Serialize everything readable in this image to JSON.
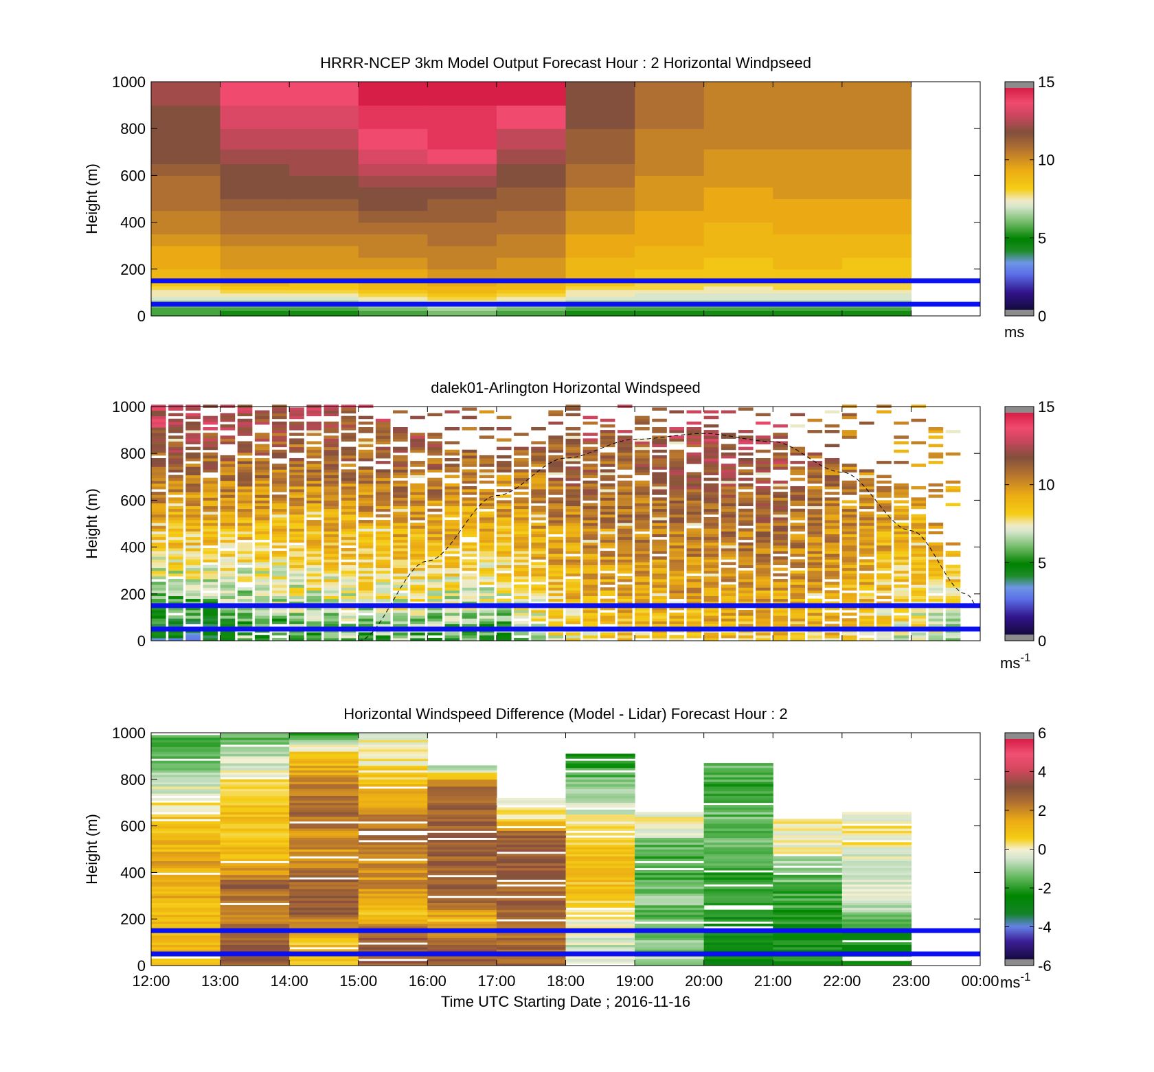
{
  "figure": {
    "xlabel": "Time UTC  Starting Date ; 2016-11-16",
    "time_ticks": [
      "12:00",
      "13:00",
      "14:00",
      "15:00",
      "16:00",
      "17:00",
      "18:00",
      "19:00",
      "20:00",
      "21:00",
      "22:00",
      "23:00",
      "00:00"
    ],
    "height_ticks": [
      "0",
      "200",
      "400",
      "600",
      "800",
      "1000"
    ],
    "ylabel": "Height (m)"
  },
  "chart_data": [
    {
      "type": "heatmap",
      "title": "HRRR-NCEP 3km Model Output   Forecast Hour : 2 Horizontal Windpseed",
      "xlabel": "",
      "ylabel": "Height (m)",
      "x_range": [
        "12:00",
        "00:00"
      ],
      "ylim": [
        0,
        1000
      ],
      "colorbar": {
        "ticks": [
          "0",
          "5",
          "10",
          "15"
        ],
        "range": [
          0,
          15
        ],
        "unit": "ms"
      },
      "reference_lines_m": [
        50,
        150
      ],
      "x_columns": [
        "12:00",
        "13:00",
        "14:00",
        "15:00",
        "16:00",
        "17:00",
        "18:00",
        "19:00",
        "20:00",
        "21:00",
        "22:00"
      ],
      "height_bins_m": [
        15,
        30,
        45,
        60,
        75,
        90,
        105,
        120,
        135,
        150,
        175,
        225,
        275,
        325,
        375,
        425,
        475,
        525,
        575,
        625,
        675,
        750,
        850,
        950
      ],
      "values": [
        [
          5.5,
          5.5,
          6,
          6.5,
          7,
          7.5,
          7.5,
          8,
          8.5,
          8.5,
          9,
          9.5,
          9.5,
          10,
          10.5,
          10.5,
          11,
          11,
          11,
          11.5,
          12,
          12,
          12,
          12.5
        ],
        [
          5,
          5.5,
          6,
          6.5,
          7,
          7.5,
          8,
          8.5,
          9,
          9,
          9.5,
          10,
          10,
          10.5,
          11,
          11,
          11.5,
          12,
          12,
          12,
          12.5,
          13,
          13.5,
          14
        ],
        [
          5,
          5.5,
          6,
          6.5,
          7,
          7.5,
          8,
          8.5,
          8.5,
          9,
          9.5,
          10,
          10,
          10.5,
          11,
          11,
          11.5,
          12,
          12,
          12.5,
          12.5,
          13,
          13.5,
          14
        ],
        [
          5.5,
          6,
          6.5,
          7,
          7.5,
          8,
          8.5,
          9,
          9,
          9.5,
          9.5,
          10,
          10.5,
          10.5,
          11,
          11.5,
          12,
          12,
          12.5,
          13,
          13.5,
          14,
          14.5,
          15
        ],
        [
          6,
          6.5,
          7,
          7.5,
          8,
          8.5,
          9,
          9,
          9.5,
          10,
          10,
          10.5,
          10.5,
          11,
          11,
          11.5,
          11.5,
          12,
          12.5,
          13,
          14,
          14.5,
          14.5,
          15
        ],
        [
          5.5,
          6,
          6.5,
          7,
          7.5,
          8,
          8.5,
          9,
          9,
          9.5,
          10,
          10,
          10.5,
          10.5,
          11,
          11,
          11.5,
          11.5,
          12,
          12,
          12.5,
          13,
          14,
          15
        ],
        [
          5,
          5.5,
          6,
          6.5,
          7,
          7.5,
          7.5,
          8,
          8.5,
          8.5,
          9,
          9,
          9.5,
          9.5,
          10,
          10,
          10.5,
          10.5,
          11,
          11,
          11.5,
          11.5,
          12,
          12
        ],
        [
          5,
          5.5,
          6,
          6.5,
          7,
          7,
          7.5,
          8,
          8,
          8.5,
          8.5,
          9,
          9,
          9.5,
          9.5,
          9.5,
          10,
          10,
          10,
          10.5,
          10.5,
          10.5,
          11,
          11
        ],
        [
          5,
          5.5,
          6,
          6.5,
          7,
          7,
          7.5,
          7.5,
          8,
          8,
          8.5,
          8.5,
          9,
          9,
          9,
          9.5,
          9.5,
          9.5,
          10,
          10,
          10,
          10.5,
          10.5,
          10.5
        ],
        [
          5,
          5.5,
          6,
          6.5,
          7,
          7,
          7.5,
          8,
          8,
          8.5,
          8.5,
          9,
          9,
          9,
          9.5,
          9.5,
          9.5,
          10,
          10,
          10,
          10,
          10.5,
          10.5,
          10.5
        ],
        [
          5,
          5.5,
          6,
          6.5,
          7,
          7,
          7.5,
          8,
          8,
          8.5,
          8.5,
          8.5,
          9,
          9,
          9.5,
          9.5,
          9.5,
          10,
          10,
          10,
          10,
          10.5,
          10.5,
          10.5
        ]
      ]
    },
    {
      "type": "heatmap",
      "title": "dalek01-Arlington  Horizontal Windspeed",
      "xlabel": "",
      "ylabel": "Height (m)",
      "x_range": [
        "12:00",
        "00:00"
      ],
      "ylim": [
        0,
        1000
      ],
      "colorbar": {
        "ticks": [
          "0",
          "5",
          "10",
          "15"
        ],
        "range": [
          0,
          15
        ],
        "unit_base": "ms",
        "unit_exponent": "-1"
      },
      "reference_lines_m": [
        50,
        150
      ],
      "overlay": "dashed arc (approximate data-coverage envelope) from 15:00, 0 m rising to about 880 m near 20:00 and descending to about 200 m at 23:30",
      "columns_per_hour": 4,
      "profile_nodes_hours_after_1200": [
        0,
        1,
        2,
        3,
        4,
        5,
        6,
        7,
        8,
        9,
        10,
        11,
        11.75
      ],
      "profile_low_ms": [
        3.5,
        4.0,
        5.0,
        5.5,
        5.5,
        5.0,
        7.5,
        8.5,
        8.5,
        8.5,
        8.5,
        7.0,
        6.0
      ],
      "profile_high_ms": [
        13.5,
        13.0,
        12.5,
        12.5,
        12.0,
        11.0,
        12.0,
        12.0,
        12.5,
        12.5,
        11.0,
        10.0,
        9.5
      ],
      "valid_top_m": [
        1000,
        1000,
        1000,
        1000,
        850,
        780,
        880,
        900,
        900,
        860,
        760,
        650,
        330
      ]
    },
    {
      "type": "heatmap",
      "title": "Horizontal Windspeed Difference (Model - Lidar) Forecast Hour : 2",
      "xlabel": "Time UTC  Starting Date ; 2016-11-16",
      "ylabel": "Height (m)",
      "x_range": [
        "12:00",
        "00:00"
      ],
      "ylim": [
        0,
        1000
      ],
      "colorbar": {
        "ticks": [
          "-6",
          "-4",
          "-2",
          "0",
          "2",
          "4",
          "6"
        ],
        "range": [
          -6,
          6
        ],
        "unit_base": "ms",
        "unit_exponent": "-1"
      },
      "reference_lines_m": [
        50,
        150
      ],
      "x_columns": [
        "12:00",
        "13:00",
        "14:00",
        "15:00",
        "16:00",
        "17:00",
        "18:00",
        "19:00",
        "20:00",
        "21:00",
        "22:00"
      ],
      "column_ranges_m": [
        [
          0,
          1000
        ],
        [
          0,
          1000
        ],
        [
          0,
          1000
        ],
        [
          0,
          1000
        ],
        [
          0,
          860
        ],
        [
          0,
          720
        ],
        [
          0,
          910
        ],
        [
          0,
          660
        ],
        [
          0,
          870
        ],
        [
          0,
          630
        ],
        [
          0,
          660
        ]
      ],
      "column_profiles_ms": [
        [
          1,
          1,
          1,
          1.5,
          1.5,
          1,
          0.5,
          -0.5,
          -1.5,
          -2
        ],
        [
          3,
          3,
          2,
          3,
          1,
          1,
          1,
          0.5,
          -0.5,
          -2
        ],
        [
          1,
          1,
          3,
          3,
          2,
          2,
          3,
          2,
          1,
          -2
        ],
        [
          3,
          3,
          1,
          2,
          2,
          3,
          2,
          1,
          0,
          0
        ],
        [
          3,
          3,
          1,
          3,
          3,
          3,
          3,
          3,
          3,
          -2
        ],
        [
          3,
          3,
          2,
          3,
          3,
          3,
          3,
          3,
          0,
          0
        ],
        [
          0,
          -0.5,
          0,
          1,
          1,
          1,
          0,
          -0.5,
          -1.5,
          -2.5
        ],
        [
          -1,
          -1,
          -1.5,
          -1.5,
          -1,
          -2,
          -2,
          -1.5,
          0,
          0
        ],
        [
          -2.5,
          -2.5,
          -2.5,
          -2,
          -2,
          -1.5,
          -1.5,
          -1.5,
          -2,
          -1.5
        ],
        [
          -2.5,
          -2.5,
          -2.5,
          -2,
          -2,
          -1.5,
          -1.5,
          0,
          0,
          0
        ],
        [
          -2.5,
          -2.5,
          -2.5,
          -1,
          -0.5,
          -0.5,
          -0.5,
          0,
          0,
          0
        ]
      ]
    }
  ]
}
